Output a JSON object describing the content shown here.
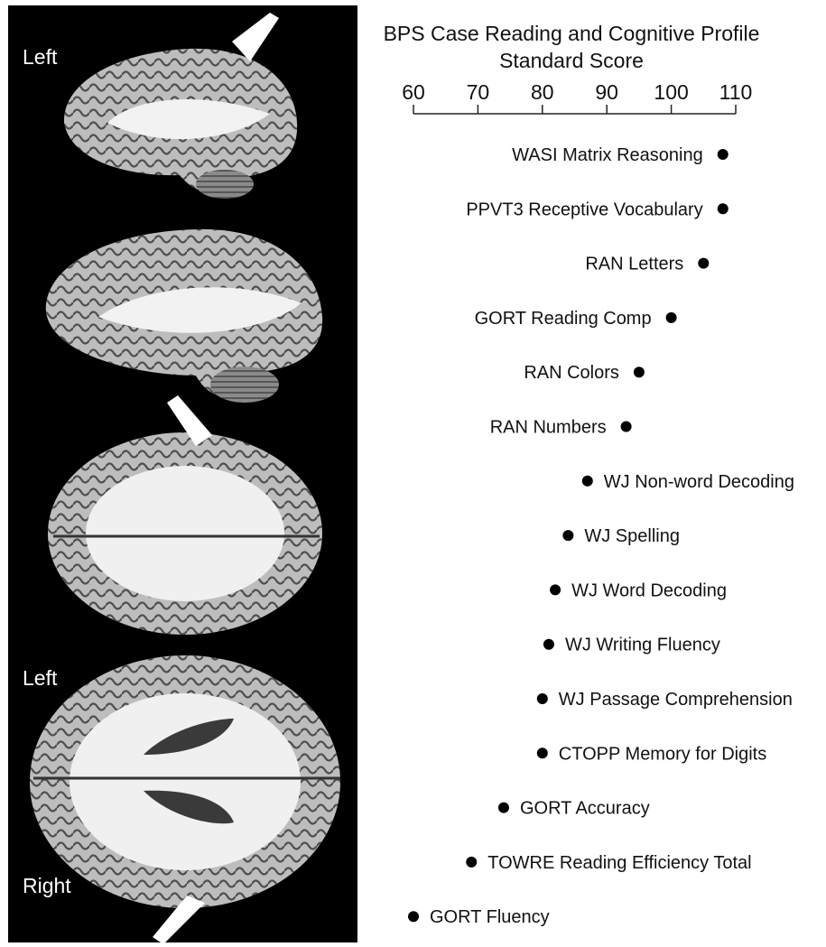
{
  "panel_labels": {
    "top_left": "Left",
    "lower_left": "Left",
    "lower_right": "Right"
  },
  "chart_data": {
    "type": "scatter",
    "title": "BPS Case Reading and Cognitive Profile",
    "xlabel": "Standard Score",
    "ylabel": "",
    "xlim": [
      60,
      110
    ],
    "ticks": [
      60,
      70,
      80,
      90,
      100,
      110
    ],
    "grid": false,
    "points": [
      {
        "label": "WASI Matrix Reasoning",
        "value": 108,
        "label_side": "left"
      },
      {
        "label": "PPVT3 Receptive Vocabulary",
        "value": 108,
        "label_side": "left"
      },
      {
        "label": "RAN Letters",
        "value": 105,
        "label_side": "left"
      },
      {
        "label": "GORT Reading Comp",
        "value": 100,
        "label_side": "left"
      },
      {
        "label": "RAN Colors",
        "value": 95,
        "label_side": "left"
      },
      {
        "label": "RAN Numbers",
        "value": 93,
        "label_side": "left"
      },
      {
        "label": "WJ Non-word Decoding",
        "value": 87,
        "label_side": "right"
      },
      {
        "label": "WJ Spelling",
        "value": 84,
        "label_side": "right"
      },
      {
        "label": "WJ Word Decoding",
        "value": 82,
        "label_side": "right"
      },
      {
        "label": "WJ Writing Fluency",
        "value": 81,
        "label_side": "right"
      },
      {
        "label": "WJ Passage Comprehension",
        "value": 80,
        "label_side": "right"
      },
      {
        "label": "CTOPP Memory for Digits",
        "value": 80,
        "label_side": "right"
      },
      {
        "label": "GORT Accuracy",
        "value": 74,
        "label_side": "right"
      },
      {
        "label": "TOWRE Reading Efficiency Total",
        "value": 69,
        "label_side": "right"
      },
      {
        "label": "GORT Fluency",
        "value": 60,
        "label_side": "right"
      }
    ]
  }
}
